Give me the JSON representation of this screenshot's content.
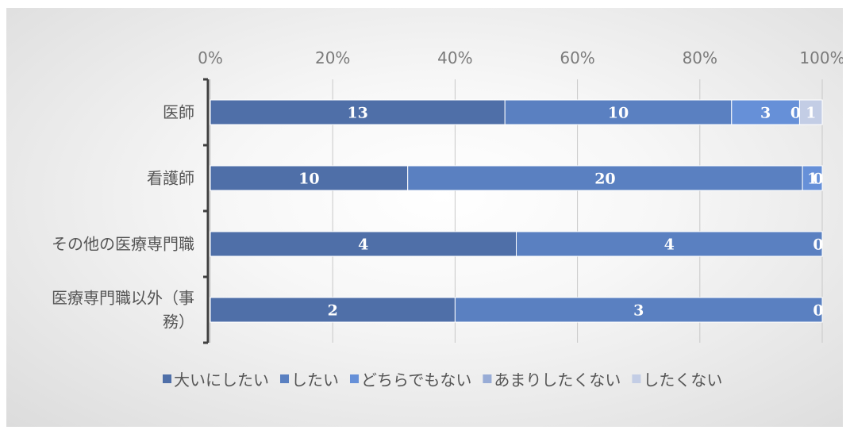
{
  "chart_data": {
    "type": "bar",
    "orientation": "horizontal",
    "stacked": "percent",
    "categories": [
      "医師",
      "看護師",
      "その他の医療専門職",
      "医療専門職以外（事務）"
    ],
    "category_lines": [
      [
        "医師"
      ],
      [
        "看護師"
      ],
      [
        "その他の医療専門職"
      ],
      [
        "医療専門職以外（事",
        "務）"
      ]
    ],
    "series": [
      {
        "name": "大いにしたい",
        "values": [
          13,
          10,
          4,
          2
        ],
        "labels": [
          "13",
          "10",
          "4",
          "2"
        ],
        "color": "#4f6fa8"
      },
      {
        "name": "したい",
        "values": [
          10,
          20,
          4,
          3
        ],
        "labels": [
          "10",
          "20",
          "4",
          "3"
        ],
        "color": "#5a80c1"
      },
      {
        "name": "どちらでもない",
        "values": [
          3,
          1,
          0,
          0
        ],
        "labels": [
          "3",
          "1",
          "",
          ""
        ],
        "color": "#6690d8"
      },
      {
        "name": "あまりしたくない",
        "values": [
          0,
          0,
          0,
          0
        ],
        "labels": [
          "0",
          "0",
          "0",
          "0"
        ],
        "color": "#98acd6"
      },
      {
        "name": "したくない",
        "values": [
          1,
          0,
          0,
          0
        ],
        "labels": [
          "1",
          "",
          "",
          ""
        ],
        "color": "#c3cde5"
      }
    ],
    "xlim": [
      0,
      100
    ],
    "x_ticks": [
      "0%",
      "20%",
      "40%",
      "60%",
      "80%",
      "100%"
    ],
    "x_axis_position": "top",
    "grid": true,
    "legend_position": "bottom"
  }
}
